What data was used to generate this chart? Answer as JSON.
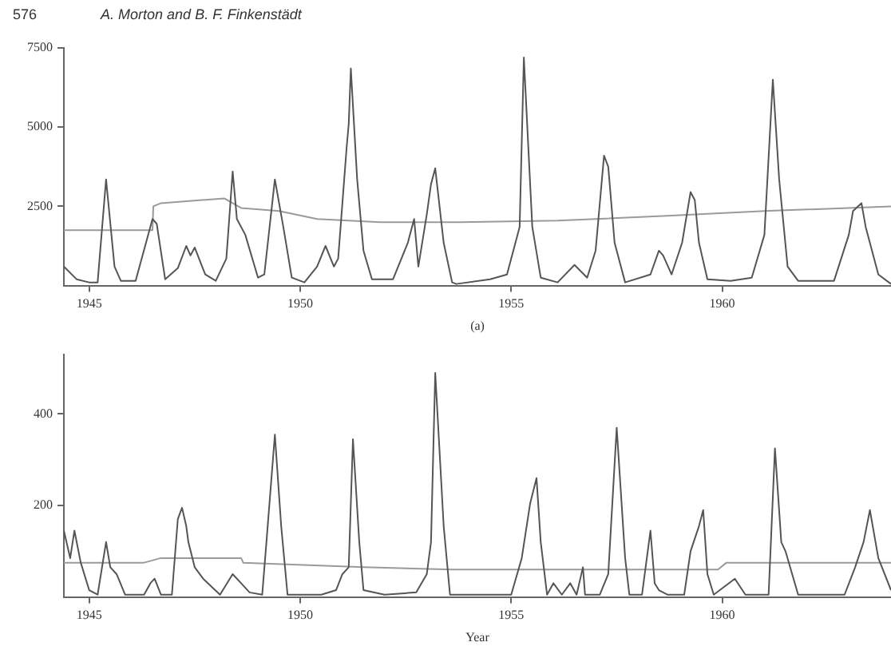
{
  "chart_data": [
    {
      "type": "line",
      "annotations": [
        "576",
        "A. Morton and B. F. Finkenstädt"
      ],
      "xlabel": "(a)",
      "xlim": [
        1944.4,
        1964
      ],
      "xticks": [
        1945,
        1950,
        1955,
        1960
      ],
      "ylim": [
        0,
        7500
      ],
      "yticks": [
        2500,
        5000,
        7500
      ],
      "grid": false,
      "legend": false,
      "marker": "none",
      "line_style": "solid",
      "series": [
        {
          "color": "#555555",
          "x": [
            1944.4,
            1944.7,
            1945.0,
            1945.2,
            1945.4,
            1945.6,
            1945.75,
            1946.1,
            1946.5,
            1946.6,
            1946.8,
            1947.1,
            1947.3,
            1947.4,
            1947.5,
            1947.75,
            1948.0,
            1948.25,
            1948.4,
            1948.5,
            1948.7,
            1949.0,
            1949.15,
            1949.4,
            1949.6,
            1949.8,
            1950.1,
            1950.4,
            1950.6,
            1950.8,
            1950.9,
            1951.1,
            1951.15,
            1951.2,
            1951.35,
            1951.5,
            1951.7,
            1952.2,
            1952.55,
            1952.7,
            1952.8,
            1953.0,
            1953.1,
            1953.2,
            1953.4,
            1953.6,
            1953.7,
            1954.5,
            1954.9,
            1955.2,
            1955.3,
            1955.5,
            1955.7,
            1956.1,
            1956.5,
            1956.8,
            1957.0,
            1957.2,
            1957.3,
            1957.45,
            1957.7,
            1958.3,
            1958.5,
            1958.6,
            1958.8,
            1959.05,
            1959.25,
            1959.35,
            1959.45,
            1959.65,
            1960.2,
            1960.7,
            1961.0,
            1961.2,
            1961.35,
            1961.55,
            1961.8,
            1962.65,
            1963.0,
            1963.1,
            1963.3,
            1963.4,
            1963.7,
            1964.0
          ],
          "values": [
            600,
            200,
            100,
            100,
            3350,
            600,
            150,
            150,
            2100,
            1950,
            200,
            550,
            1250,
            950,
            1200,
            350,
            150,
            850,
            3600,
            2100,
            1600,
            250,
            350,
            3350,
            1850,
            250,
            100,
            600,
            1250,
            600,
            850,
            4350,
            5100,
            6850,
            3350,
            1100,
            200,
            200,
            1350,
            2100,
            600,
            2250,
            3200,
            3700,
            1350,
            100,
            50,
            200,
            350,
            1850,
            7200,
            1850,
            250,
            100,
            650,
            250,
            1100,
            4100,
            3750,
            1350,
            100,
            350,
            1100,
            950,
            350,
            1350,
            2950,
            2700,
            1350,
            200,
            150,
            250,
            1600,
            6500,
            3350,
            600,
            150,
            150,
            1600,
            2350,
            2600,
            1850,
            350,
            50
          ]
        },
        {
          "color": "#9a9a9a",
          "x": [
            1944.4,
            1946.5,
            1946.52,
            1946.7,
            1948.2,
            1948.6,
            1949.5,
            1950.4,
            1951.9,
            1953.8,
            1956.1,
            1958.7,
            1961.0,
            1964.0
          ],
          "values": [
            1750,
            1750,
            2500,
            2600,
            2750,
            2450,
            2350,
            2100,
            2000,
            2000,
            2050,
            2200,
            2350,
            2500
          ]
        }
      ]
    },
    {
      "type": "line",
      "xlabel": "Year",
      "xlim": [
        1944.4,
        1964
      ],
      "xticks": [
        1945,
        1950,
        1955,
        1960
      ],
      "ylim": [
        0,
        530
      ],
      "yticks": [
        200,
        400
      ],
      "grid": false,
      "legend": false,
      "marker": "none",
      "line_style": "solid",
      "series": [
        {
          "color": "#555555",
          "x": [
            1944.4,
            1944.55,
            1944.65,
            1944.8,
            1945.0,
            1945.2,
            1945.4,
            1945.5,
            1945.65,
            1945.85,
            1946.3,
            1946.45,
            1946.55,
            1946.7,
            1946.96,
            1947.1,
            1947.2,
            1947.3,
            1947.35,
            1947.5,
            1947.7,
            1948.1,
            1948.4,
            1948.6,
            1948.8,
            1949.1,
            1949.2,
            1949.4,
            1949.55,
            1949.7,
            1950.5,
            1950.85,
            1951.0,
            1951.15,
            1951.25,
            1951.4,
            1951.5,
            1952.0,
            1952.75,
            1953.0,
            1953.1,
            1953.2,
            1953.4,
            1953.55,
            1953.65,
            1955.0,
            1955.25,
            1955.45,
            1955.6,
            1955.7,
            1955.85,
            1956.0,
            1956.2,
            1956.4,
            1956.55,
            1956.7,
            1956.75,
            1957.1,
            1957.3,
            1957.5,
            1957.7,
            1957.8,
            1958.1,
            1958.3,
            1958.4,
            1958.5,
            1958.7,
            1959.1,
            1959.25,
            1959.45,
            1959.55,
            1959.65,
            1959.8,
            1960.3,
            1960.55,
            1961.1,
            1961.25,
            1961.4,
            1961.5,
            1961.8,
            1962.9,
            1963.15,
            1963.35,
            1963.5,
            1963.7,
            1964.0
          ],
          "values": [
            145,
            85,
            145,
            75,
            15,
            5,
            120,
            65,
            50,
            5,
            5,
            30,
            40,
            5,
            5,
            170,
            195,
            155,
            120,
            65,
            40,
            5,
            50,
            30,
            10,
            5,
            120,
            355,
            155,
            5,
            5,
            15,
            50,
            65,
            345,
            120,
            15,
            5,
            10,
            50,
            120,
            490,
            155,
            5,
            5,
            5,
            85,
            205,
            260,
            120,
            5,
            30,
            5,
            30,
            5,
            65,
            5,
            5,
            50,
            370,
            85,
            5,
            5,
            145,
            30,
            15,
            5,
            5,
            100,
            155,
            190,
            50,
            5,
            40,
            5,
            5,
            325,
            120,
            100,
            5,
            5,
            65,
            120,
            190,
            85,
            15
          ]
        },
        {
          "color": "#9a9a9a",
          "x": [
            1944.4,
            1946.3,
            1946.7,
            1948.6,
            1948.65,
            1951.5,
            1953.6,
            1956.0,
            1959.9,
            1960.1,
            1964.0
          ],
          "values": [
            75,
            75,
            85,
            85,
            75,
            65,
            60,
            60,
            60,
            75,
            75
          ]
        }
      ]
    }
  ]
}
